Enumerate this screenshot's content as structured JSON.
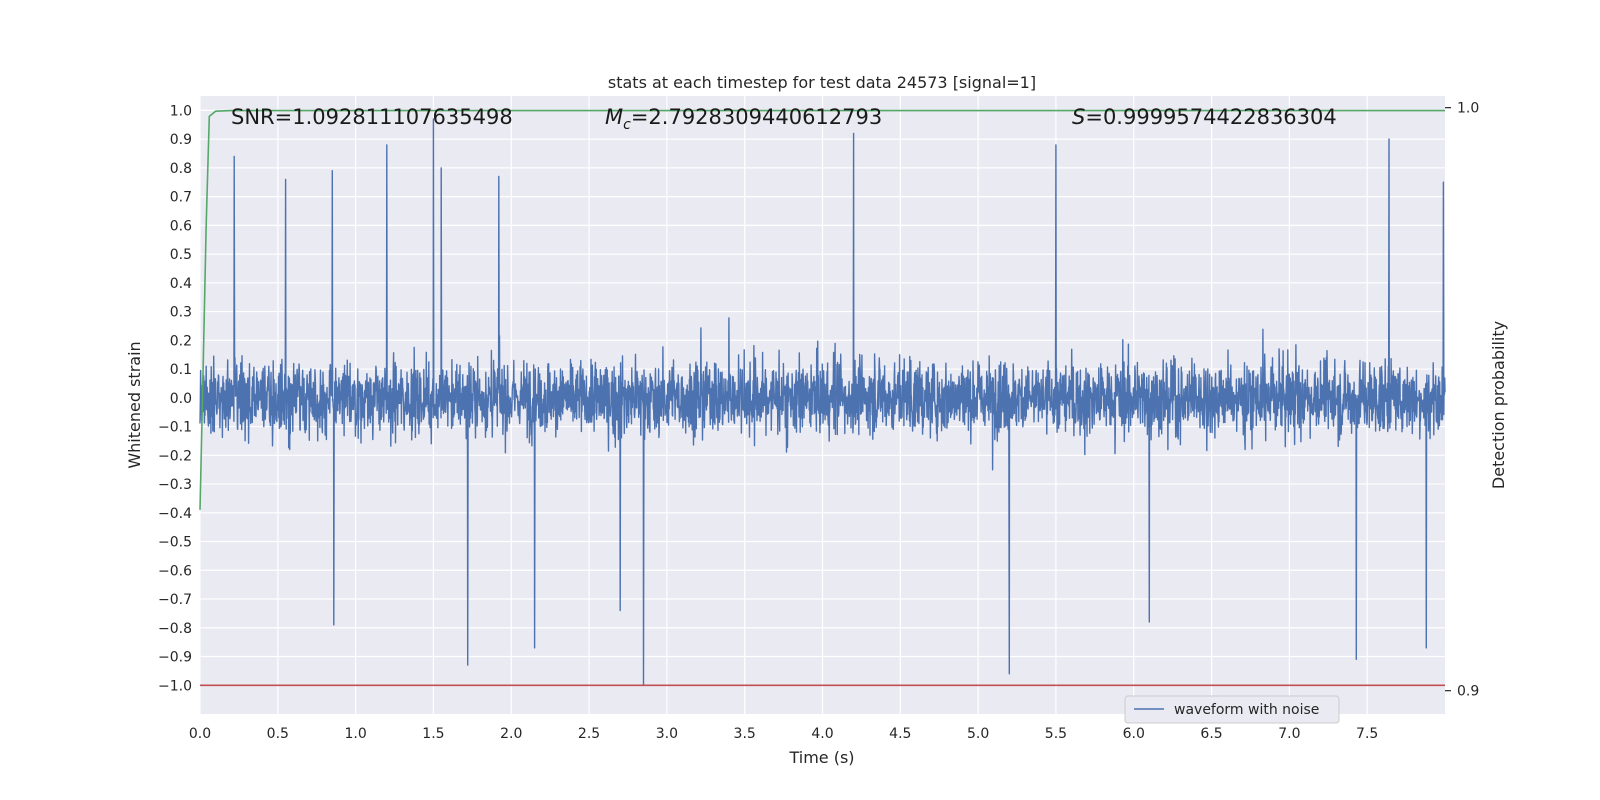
{
  "chart_data": {
    "type": "line",
    "title": "stats at each timestep for test data 24573 [signal=1]",
    "xlabel": "Time (s)",
    "ylabel": "Whitened strain",
    "y2label": "Detection probability",
    "xlim": [
      0.0,
      8.0
    ],
    "ylim": [
      -1.1,
      1.05
    ],
    "y2lim": [
      0.896,
      1.002
    ],
    "x_ticks": [
      "0.0",
      "0.5",
      "1.0",
      "1.5",
      "2.0",
      "2.5",
      "3.0",
      "3.5",
      "4.0",
      "4.5",
      "5.0",
      "5.5",
      "6.0",
      "6.5",
      "7.0",
      "7.5"
    ],
    "x_tick_values": [
      0.0,
      0.5,
      1.0,
      1.5,
      2.0,
      2.5,
      3.0,
      3.5,
      4.0,
      4.5,
      5.0,
      5.5,
      6.0,
      6.5,
      7.0,
      7.5
    ],
    "y_ticks": [
      "1.0",
      "0.9",
      "0.8",
      "0.7",
      "0.6",
      "0.5",
      "0.4",
      "0.3",
      "0.2",
      "0.1",
      "0.0",
      "−0.1",
      "−0.2",
      "−0.3",
      "−0.4",
      "−0.5",
      "−0.6",
      "−0.7",
      "−0.8",
      "−0.9",
      "−1.0"
    ],
    "y_tick_values": [
      1.0,
      0.9,
      0.8,
      0.7,
      0.6,
      0.5,
      0.4,
      0.3,
      0.2,
      0.1,
      0.0,
      -0.1,
      -0.2,
      -0.3,
      -0.4,
      -0.5,
      -0.6,
      -0.7,
      -0.8,
      -0.9,
      -1.0
    ],
    "y2_ticks": [
      "1.0",
      "0.9"
    ],
    "y2_tick_values": [
      1.0,
      0.9
    ],
    "grid": true,
    "legend_placement": "lower-center-right",
    "annotations": {
      "snr": "SNR=1.092811107635498",
      "mc_symbol": "M",
      "mc_sub": "c",
      "mc_value": "=2.7928309440612793",
      "s_symbol": "S",
      "s_value": "=0.9999574422836304"
    },
    "series": [
      {
        "name": "waveform with noise",
        "axis": "left",
        "color": "#4c72b0",
        "kind": "noise",
        "sample_count": 4000,
        "range": [
          -1.0,
          0.97
        ],
        "spikes": [
          {
            "x": 0.22,
            "y": 0.84
          },
          {
            "x": 0.55,
            "y": 0.76
          },
          {
            "x": 0.85,
            "y": 0.79
          },
          {
            "x": 0.86,
            "y": -0.79
          },
          {
            "x": 1.2,
            "y": 0.88
          },
          {
            "x": 1.5,
            "y": 0.97
          },
          {
            "x": 1.55,
            "y": 0.8
          },
          {
            "x": 1.72,
            "y": -0.93
          },
          {
            "x": 1.92,
            "y": 0.77
          },
          {
            "x": 2.15,
            "y": -0.87
          },
          {
            "x": 2.85,
            "y": -1.0
          },
          {
            "x": 2.7,
            "y": -0.74
          },
          {
            "x": 4.2,
            "y": 0.92
          },
          {
            "x": 5.2,
            "y": -0.96
          },
          {
            "x": 5.5,
            "y": 0.88
          },
          {
            "x": 6.1,
            "y": -0.78
          },
          {
            "x": 7.43,
            "y": -0.91
          },
          {
            "x": 7.64,
            "y": 0.9
          },
          {
            "x": 7.88,
            "y": -0.87
          },
          {
            "x": 7.99,
            "y": 0.75
          }
        ]
      },
      {
        "name": "",
        "axis": "right",
        "color": "#55a868",
        "x": [
          0.0,
          0.02,
          0.04,
          0.06,
          0.1,
          0.2,
          0.5,
          1.0,
          2.0,
          4.0,
          6.0,
          8.0
        ],
        "values": [
          0.931,
          0.955,
          0.98,
          0.9985,
          0.9994,
          0.9995,
          0.9995,
          0.9995,
          0.9995,
          0.9995,
          0.9995,
          0.9995
        ]
      },
      {
        "name": "",
        "axis": "left",
        "color": "#c44e52",
        "x": [
          0.0,
          8.0
        ],
        "values": [
          -1.0,
          -1.0
        ]
      }
    ]
  }
}
